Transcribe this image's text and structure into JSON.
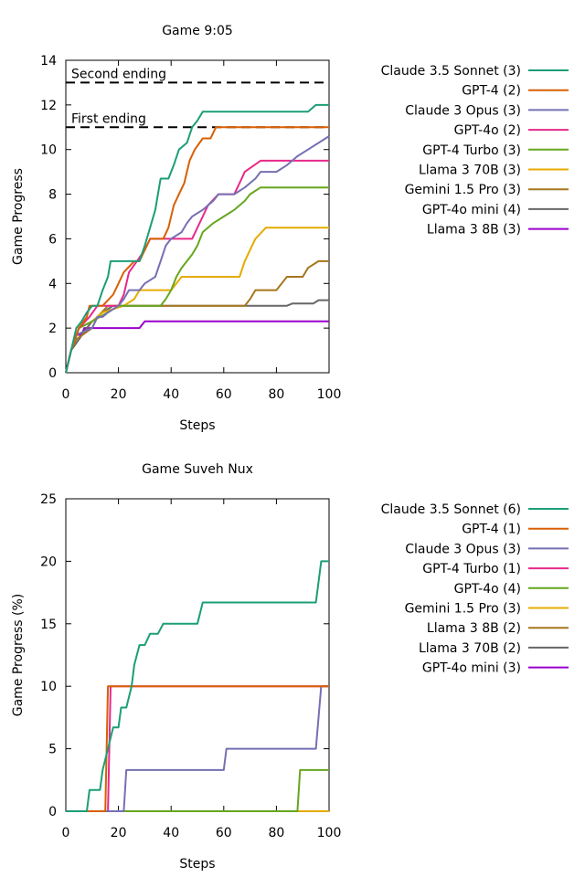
{
  "chart_data": [
    {
      "type": "line",
      "title": "Game 9:05",
      "xlabel": "Steps",
      "ylabel": "Game Progress",
      "xlim": [
        0,
        100
      ],
      "ylim": [
        0,
        14
      ],
      "xticks": [
        "0",
        "20",
        "40",
        "60",
        "80",
        "100"
      ],
      "yticks": [
        "0",
        "2",
        "4",
        "6",
        "8",
        "10",
        "12",
        "14"
      ],
      "grid": false,
      "legend_position": "right",
      "reference_lines": [
        {
          "label": "Second ending",
          "y": 13
        },
        {
          "label": "First ending",
          "y": 11
        }
      ],
      "series": [
        {
          "name": "Claude 3.5 Sonnet (3)",
          "color": "#1b9e77",
          "points": [
            [
              0,
              0
            ],
            [
              2,
              1
            ],
            [
              4,
              2
            ],
            [
              6,
              2.3
            ],
            [
              8,
              2.7
            ],
            [
              10,
              3
            ],
            [
              12,
              3
            ],
            [
              14,
              3.7
            ],
            [
              16,
              4.3
            ],
            [
              17,
              5
            ],
            [
              28,
              5
            ],
            [
              30,
              5.7
            ],
            [
              32,
              6.5
            ],
            [
              34,
              7.3
            ],
            [
              35,
              8
            ],
            [
              36,
              8.7
            ],
            [
              39,
              8.7
            ],
            [
              41,
              9.3
            ],
            [
              43,
              10
            ],
            [
              46,
              10.3
            ],
            [
              48,
              11
            ],
            [
              50,
              11.3
            ],
            [
              52,
              11.7
            ],
            [
              58,
              11.7
            ],
            [
              92,
              11.7
            ],
            [
              95,
              12
            ],
            [
              100,
              12
            ]
          ]
        },
        {
          "name": "GPT-4 (2)",
          "color": "#d95f02",
          "points": [
            [
              0,
              0
            ],
            [
              2,
              1
            ],
            [
              5,
              2
            ],
            [
              8,
              2.5
            ],
            [
              9,
              3
            ],
            [
              12,
              3
            ],
            [
              14,
              3
            ],
            [
              18,
              3.5
            ],
            [
              22,
              4.5
            ],
            [
              26,
              5
            ],
            [
              28,
              5
            ],
            [
              30,
              5.5
            ],
            [
              32,
              6
            ],
            [
              37,
              6
            ],
            [
              39,
              6.5
            ],
            [
              41,
              7.5
            ],
            [
              43,
              8
            ],
            [
              45,
              8.5
            ],
            [
              47,
              9.5
            ],
            [
              49,
              10
            ],
            [
              52,
              10.5
            ],
            [
              55,
              10.5
            ],
            [
              57,
              11
            ],
            [
              100,
              11
            ]
          ]
        },
        {
          "name": "Claude 3 Opus (3)",
          "color": "#7570b3",
          "points": [
            [
              0,
              0
            ],
            [
              2,
              1
            ],
            [
              4,
              1.7
            ],
            [
              10,
              2
            ],
            [
              12,
              2.5
            ],
            [
              14,
              2.5
            ],
            [
              16,
              2.7
            ],
            [
              20,
              3
            ],
            [
              22,
              3.3
            ],
            [
              24,
              3.7
            ],
            [
              28,
              3.7
            ],
            [
              30,
              4
            ],
            [
              34,
              4.3
            ],
            [
              36,
              5
            ],
            [
              38,
              5.7
            ],
            [
              40,
              6
            ],
            [
              44,
              6.3
            ],
            [
              46,
              6.7
            ],
            [
              48,
              7
            ],
            [
              52,
              7.3
            ],
            [
              56,
              7.7
            ],
            [
              58,
              8
            ],
            [
              64,
              8
            ],
            [
              68,
              8.3
            ],
            [
              72,
              8.7
            ],
            [
              74,
              9
            ],
            [
              80,
              9
            ],
            [
              84,
              9.3
            ],
            [
              88,
              9.7
            ],
            [
              92,
              10
            ],
            [
              96,
              10.3
            ],
            [
              100,
              10.6
            ]
          ]
        },
        {
          "name": "GPT-4o (2)",
          "color": "#e7298a",
          "points": [
            [
              0,
              0
            ],
            [
              2,
              1
            ],
            [
              5,
              2
            ],
            [
              9,
              2.5
            ],
            [
              12,
              3
            ],
            [
              20,
              3
            ],
            [
              22,
              3.5
            ],
            [
              24,
              4.5
            ],
            [
              27,
              5
            ],
            [
              30,
              5.5
            ],
            [
              32,
              6
            ],
            [
              48,
              6
            ],
            [
              50,
              6.5
            ],
            [
              52,
              7
            ],
            [
              54,
              7.5
            ],
            [
              58,
              8
            ],
            [
              64,
              8
            ],
            [
              66,
              8.5
            ],
            [
              68,
              9
            ],
            [
              74,
              9.5
            ],
            [
              100,
              9.5
            ]
          ]
        },
        {
          "name": "GPT-4 Turbo (3)",
          "color": "#66a61e",
          "points": [
            [
              0,
              0
            ],
            [
              2,
              1
            ],
            [
              5,
              2
            ],
            [
              10,
              2.3
            ],
            [
              16,
              2.7
            ],
            [
              20,
              3
            ],
            [
              36,
              3
            ],
            [
              38,
              3.3
            ],
            [
              40,
              3.7
            ],
            [
              42,
              4.3
            ],
            [
              44,
              4.7
            ],
            [
              46,
              5
            ],
            [
              48,
              5.3
            ],
            [
              50,
              5.7
            ],
            [
              52,
              6.3
            ],
            [
              56,
              6.7
            ],
            [
              60,
              7
            ],
            [
              64,
              7.3
            ],
            [
              68,
              7.7
            ],
            [
              70,
              8
            ],
            [
              74,
              8.3
            ],
            [
              100,
              8.3
            ]
          ]
        },
        {
          "name": "Llama 3 70B (3)",
          "color": "#e6ab02",
          "points": [
            [
              0,
              0
            ],
            [
              2,
              1
            ],
            [
              5,
              2
            ],
            [
              10,
              2.3
            ],
            [
              14,
              2.7
            ],
            [
              22,
              3
            ],
            [
              26,
              3.3
            ],
            [
              28,
              3.7
            ],
            [
              40,
              3.7
            ],
            [
              42,
              4
            ],
            [
              44,
              4.3
            ],
            [
              66,
              4.3
            ],
            [
              68,
              5
            ],
            [
              70,
              5.5
            ],
            [
              72,
              6
            ],
            [
              76,
              6.5
            ],
            [
              100,
              6.5
            ]
          ]
        },
        {
          "name": "Gemini 1.5 Pro (3)",
          "color": "#a6761d",
          "points": [
            [
              0,
              0
            ],
            [
              2,
              1
            ],
            [
              4,
              1.5
            ],
            [
              10,
              2
            ],
            [
              12,
              2.5
            ],
            [
              16,
              3
            ],
            [
              68,
              3
            ],
            [
              70,
              3.3
            ],
            [
              72,
              3.7
            ],
            [
              80,
              3.7
            ],
            [
              82,
              4
            ],
            [
              84,
              4.3
            ],
            [
              90,
              4.3
            ],
            [
              92,
              4.7
            ],
            [
              96,
              5
            ],
            [
              100,
              5
            ]
          ]
        },
        {
          "name": "GPT-4o mini (4)",
          "color": "#666666",
          "points": [
            [
              0,
              0
            ],
            [
              2,
              1
            ],
            [
              5,
              1.5
            ],
            [
              8,
              2
            ],
            [
              10,
              2.3
            ],
            [
              14,
              2.7
            ],
            [
              18,
              3
            ],
            [
              84,
              3
            ],
            [
              86,
              3.1
            ],
            [
              94,
              3.1
            ],
            [
              96,
              3.25
            ],
            [
              100,
              3.25
            ]
          ]
        },
        {
          "name": "Llama 3 8B (3)",
          "color": "#9900cc",
          "points": [
            [
              0,
              0
            ],
            [
              2,
              1
            ],
            [
              4,
              1.7
            ],
            [
              6,
              1.7
            ],
            [
              7,
              2
            ],
            [
              28,
              2
            ],
            [
              30,
              2.3
            ],
            [
              100,
              2.3
            ]
          ]
        }
      ]
    },
    {
      "type": "line",
      "title": "Game Suveh Nux",
      "xlabel": "Steps",
      "ylabel": "Game Progress (%)",
      "xlim": [
        0,
        100
      ],
      "ylim": [
        0,
        25
      ],
      "xticks": [
        "0",
        "20",
        "40",
        "60",
        "80",
        "100"
      ],
      "yticks": [
        "0",
        "5",
        "10",
        "15",
        "20",
        "25"
      ],
      "grid": false,
      "legend_position": "right",
      "series": [
        {
          "name": "Claude 3.5 Sonnet (6)",
          "color": "#1b9e77",
          "points": [
            [
              0,
              0
            ],
            [
              8,
              0
            ],
            [
              9,
              1.7
            ],
            [
              13,
              1.7
            ],
            [
              14,
              3.3
            ],
            [
              16,
              5
            ],
            [
              18,
              6.7
            ],
            [
              20,
              6.7
            ],
            [
              21,
              8.3
            ],
            [
              23,
              8.3
            ],
            [
              25,
              10
            ],
            [
              26,
              11.7
            ],
            [
              28,
              13.3
            ],
            [
              30,
              13.3
            ],
            [
              32,
              14.2
            ],
            [
              35,
              14.2
            ],
            [
              37,
              15
            ],
            [
              50,
              15
            ],
            [
              52,
              16.7
            ],
            [
              95,
              16.7
            ],
            [
              97,
              20
            ],
            [
              100,
              20
            ]
          ]
        },
        {
          "name": "GPT-4 (1)",
          "color": "#d95f02",
          "points": [
            [
              0,
              0
            ],
            [
              15,
              0
            ],
            [
              16,
              10
            ],
            [
              100,
              10
            ]
          ]
        },
        {
          "name": "Claude 3 Opus (3)",
          "color": "#7570b3",
          "points": [
            [
              0,
              0
            ],
            [
              22,
              0
            ],
            [
              23,
              3.3
            ],
            [
              60,
              3.3
            ],
            [
              61,
              5
            ],
            [
              95,
              5
            ],
            [
              97,
              10
            ],
            [
              100,
              10
            ]
          ]
        },
        {
          "name": "GPT-4 Turbo (1)",
          "color": "#e7298a",
          "points": [
            [
              0,
              0
            ],
            [
              16,
              0
            ],
            [
              17,
              10
            ],
            [
              100,
              10
            ]
          ]
        },
        {
          "name": "GPT-4o (4)",
          "color": "#66a61e",
          "points": [
            [
              0,
              0
            ],
            [
              88,
              0
            ],
            [
              89,
              3.3
            ],
            [
              100,
              3.3
            ]
          ]
        },
        {
          "name": "Gemini 1.5 Pro (3)",
          "color": "#e6ab02",
          "points": [
            [
              0,
              0
            ],
            [
              100,
              0
            ]
          ]
        },
        {
          "name": "Llama 3 8B (2)",
          "color": "#a6761d",
          "points": [
            [
              0,
              0
            ],
            [
              100,
              0
            ]
          ]
        },
        {
          "name": "Llama 3 70B (2)",
          "color": "#666666",
          "points": [
            [
              0,
              0
            ],
            [
              100,
              0
            ]
          ]
        },
        {
          "name": "GPT-4o mini (3)",
          "color": "#9900cc",
          "points": [
            [
              0,
              0
            ],
            [
              100,
              0
            ]
          ]
        }
      ]
    }
  ]
}
